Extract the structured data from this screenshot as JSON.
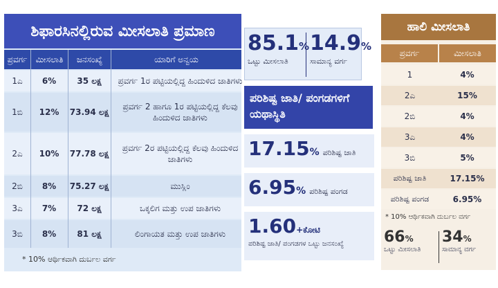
{
  "left_table": {
    "title": "ಶಿಫಾರಸಿನಲ್ಲಿರುವ ಮೀಸಲಾತಿ ಪ್ರಮಾಣ",
    "headers": [
      "ಪ್ರವರ್ಗ",
      "ಮೀಸಲಾತಿ",
      "ಜನಸಂಖ್ಯೆ",
      "ಯಾರಿಗೆ ಅನ್ವಯ"
    ],
    "rows": [
      {
        "cat": "1ಎ",
        "res": "6%",
        "pop": "35 ಲಕ್ಷ",
        "who": "ಪ್ರವರ್ಗ 1ರ ಪಟ್ಟಿಯಲ್ಲಿದ್ದ ಹಿಂದುಳಿದ ಜಾತಿಗಳು"
      },
      {
        "cat": "1ಬಿ",
        "res": "12%",
        "pop": "73.94 ಲಕ್ಷ",
        "who": "ಪ್ರವರ್ಗ 2 ಹಾಗೂ 1ರ ಪಟ್ಟಿಯಲ್ಲಿದ್ದ ಕೆಲವು ಹಿಂದುಳಿದ ಜಾತಿಗಳು"
      },
      {
        "cat": "2ಎ",
        "res": "10%",
        "pop": "77.78 ಲಕ್ಷ",
        "who": "ಪ್ರವರ್ಗ 2ರ ಪಟ್ಟಿಯಲ್ಲಿದ್ದ ಕೆಲವು ಹಿಂದುಳಿದ ಜಾತಿಗಳು"
      },
      {
        "cat": "2ಬಿ",
        "res": "8%",
        "pop": "75.27 ಲಕ್ಷ",
        "who": "ಮುಸ್ಲಿಂ"
      },
      {
        "cat": "3ಎ",
        "res": "7%",
        "pop": "72 ಲಕ್ಷ",
        "who": "ಒಕ್ಕಲಿಗ ಮತ್ತು ಉಪ ಜಾತಿಗಳು"
      },
      {
        "cat": "3ಬಿ",
        "res": "8%",
        "pop": "81 ಲಕ್ಷ",
        "who": "ಲಿಂಗಾಯತ ಮತ್ತು ಉಪ ಜಾತಿಗಳು"
      }
    ],
    "footnote": "* 10% ಆರ್ಥಿಕವಾಗಿ ದುರ್ಬಲ ವರ್ಗ"
  },
  "middle": {
    "total_reservation": {
      "value": "85.1",
      "unit": "%",
      "label": "ಒಟ್ಟು ಮೀಸಲಾತಿ"
    },
    "general": {
      "value": "14.9",
      "unit": "%",
      "label": "ಸಾಮಾನ್ಯ ವರ್ಗ"
    },
    "banner": "ಪರಿಶಿಷ್ಟ ಜಾತಿ/ ಪಂಗಡಗಳಿಗೆ ಯಥಾಸ್ಥಿತಿ",
    "sc": {
      "value": "17.15",
      "unit": "%",
      "label": "ಪರಿಶಿಷ್ಟ ಜಾತಿ"
    },
    "st": {
      "value": "6.95",
      "unit": "%",
      "label": "ಪರಿಶಿಷ್ಟ ಪಂಗಡ"
    },
    "pop": {
      "value": "1.60",
      "unit": "+ಕೋಟಿ",
      "label": "ಪರಿಶಿಷ್ಟ ಜಾತಿ/ ಪಂಗಡಗಳ ಒಟ್ಟು ಜನಸಂಖ್ಯೆ"
    }
  },
  "right_table": {
    "title": "ಹಾಲಿ ಮೀಸಲಾತಿ",
    "headers": [
      "ಪ್ರವರ್ಗ",
      "ಮೀಸಲಾತಿ"
    ],
    "rows": [
      {
        "cat": "1",
        "res": "4%"
      },
      {
        "cat": "2ಎ",
        "res": "15%"
      },
      {
        "cat": "2ಬಿ",
        "res": "4%"
      },
      {
        "cat": "3ಎ",
        "res": "4%"
      },
      {
        "cat": "3ಬಿ",
        "res": "5%"
      },
      {
        "cat": "ಪರಿಶಿಷ್ಟ ಜಾತಿ",
        "res": "17.15%"
      },
      {
        "cat": "ಪರಿಶಿಷ್ಟ ಪಂಗಡ",
        "res": "6.95%"
      }
    ],
    "footnote": "* 10% ಆರ್ಥಿಕವಾಗಿ ದುರ್ಬಲ ವರ್ಗ",
    "total": {
      "value": "66",
      "unit": "%",
      "label": "ಒಟ್ಟು ಮೀಸಲಾತಿ"
    },
    "general": {
      "value": "34",
      "unit": "%",
      "label": "ಸಾಮಾನ್ಯ ವರ್ಗ"
    }
  },
  "colors": {
    "left_accent": "#3d4fb8",
    "right_accent": "#a8763f"
  }
}
